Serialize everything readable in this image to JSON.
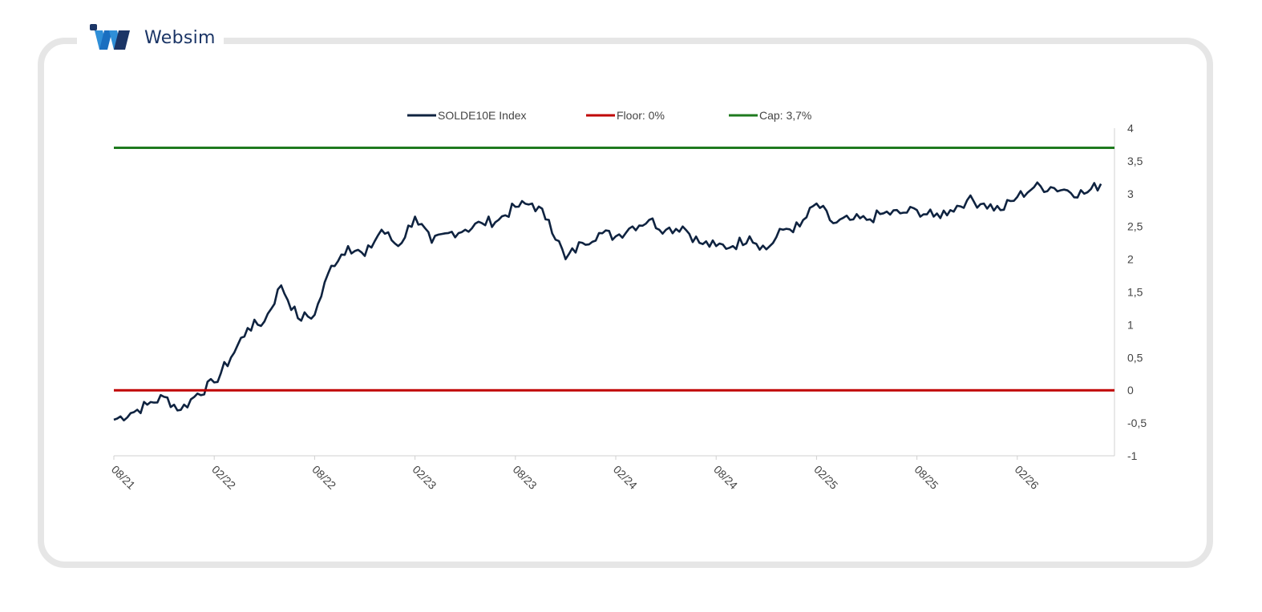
{
  "brand": {
    "name": "Websim",
    "logo_colors": [
      "#1b3566",
      "#2f8fd8",
      "#1a6fc0"
    ]
  },
  "chart_data": {
    "type": "line",
    "title": "",
    "xlabel": "",
    "ylabel": "",
    "ylim": [
      -1,
      4
    ],
    "y_ticks": [
      "4",
      "3,5",
      "3",
      "2,5",
      "2",
      "1,5",
      "1",
      "0,5",
      "0",
      "-0,5",
      "-1"
    ],
    "y_tick_values": [
      4,
      3.5,
      3,
      2.5,
      2,
      1.5,
      1,
      0.5,
      0,
      -0.5,
      -1
    ],
    "y_axis_position": "right",
    "x_ticks": [
      "08/21",
      "02/22",
      "08/22",
      "02/23",
      "08/23",
      "02/24",
      "08/24",
      "02/25",
      "08/25",
      "02/26"
    ],
    "grid": false,
    "legend_position": "top-center",
    "series": [
      {
        "name": "SOLDE10E Index",
        "color": "#0f2340",
        "points": [
          [
            "08/21",
            -0.45
          ],
          [
            "09/21",
            -0.35
          ],
          [
            "10/21",
            -0.22
          ],
          [
            "11/21",
            -0.1
          ],
          [
            "12/21",
            -0.3
          ],
          [
            "01/22",
            -0.05
          ],
          [
            "02/22",
            0.12
          ],
          [
            "03/22",
            0.5
          ],
          [
            "04/22",
            0.95
          ],
          [
            "05/22",
            1.05
          ],
          [
            "06/22",
            1.6
          ],
          [
            "07/22",
            1.1
          ],
          [
            "08/22",
            1.15
          ],
          [
            "09/22",
            1.9
          ],
          [
            "10/22",
            2.2
          ],
          [
            "11/22",
            2.05
          ],
          [
            "12/22",
            2.45
          ],
          [
            "01/23",
            2.2
          ],
          [
            "02/23",
            2.65
          ],
          [
            "03/23",
            2.25
          ],
          [
            "04/23",
            2.4
          ],
          [
            "05/23",
            2.45
          ],
          [
            "06/23",
            2.55
          ],
          [
            "07/23",
            2.6
          ],
          [
            "08/23",
            2.8
          ],
          [
            "09/23",
            2.85
          ],
          [
            "10/23",
            2.6
          ],
          [
            "11/23",
            2.0
          ],
          [
            "12/23",
            2.25
          ],
          [
            "01/24",
            2.4
          ],
          [
            "02/24",
            2.35
          ],
          [
            "03/24",
            2.5
          ],
          [
            "04/24",
            2.6
          ],
          [
            "05/24",
            2.45
          ],
          [
            "06/24",
            2.5
          ],
          [
            "07/24",
            2.25
          ],
          [
            "08/24",
            2.2
          ],
          [
            "09/24",
            2.2
          ],
          [
            "10/24",
            2.35
          ],
          [
            "11/24",
            2.15
          ],
          [
            "12/24",
            2.45
          ],
          [
            "01/25",
            2.5
          ],
          [
            "02/25",
            2.85
          ],
          [
            "03/25",
            2.55
          ],
          [
            "04/25",
            2.6
          ],
          [
            "05/25",
            2.6
          ],
          [
            "06/25",
            2.7
          ],
          [
            "07/25",
            2.7
          ],
          [
            "08/25",
            2.75
          ],
          [
            "09/25",
            2.65
          ],
          [
            "10/25",
            2.75
          ],
          [
            "11/25",
            2.9
          ],
          [
            "12/25",
            2.85
          ],
          [
            "01/26",
            2.75
          ],
          [
            "02/26",
            2.95
          ],
          [
            "03/26",
            3.1
          ],
          [
            "04/26",
            3.1
          ],
          [
            "05/26",
            3.05
          ],
          [
            "06/26",
            3.0
          ],
          [
            "07/26",
            3.15
          ]
        ]
      },
      {
        "name": "Floor: 0%",
        "color": "#c00000",
        "constant": 0
      },
      {
        "name": "Cap: 3,7%",
        "color": "#1e7a1e",
        "constant": 3.7
      }
    ]
  }
}
